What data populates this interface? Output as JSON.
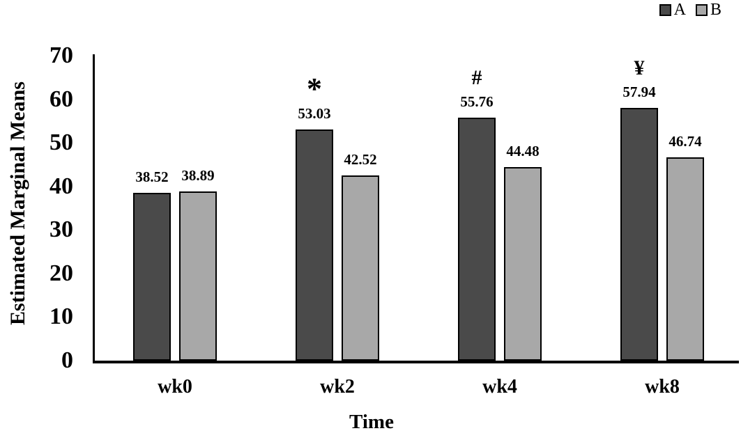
{
  "chart_data": {
    "type": "bar",
    "title": "",
    "xlabel": "Time",
    "ylabel": "Estimated Marginal Means",
    "categories": [
      "wk0",
      "wk2",
      "wk4",
      "wk8"
    ],
    "series": [
      {
        "name": "A",
        "color": "#4a4a4a",
        "values": [
          38.52,
          53.03,
          55.76,
          57.94
        ],
        "annotations": [
          "",
          "*",
          "#",
          "¥"
        ]
      },
      {
        "name": "B",
        "color": "#a8a8a8",
        "values": [
          38.89,
          42.52,
          44.48,
          46.74
        ],
        "annotations": [
          "",
          "",
          "",
          ""
        ]
      }
    ],
    "ylim": [
      0,
      70
    ],
    "yticks": [
      0,
      10,
      20,
      30,
      40,
      50,
      60,
      70
    ],
    "grid": false,
    "legend_position": "top-right",
    "bar_border_color": "#000000",
    "axis_color": "#000000",
    "value_label_decimals": 2
  }
}
